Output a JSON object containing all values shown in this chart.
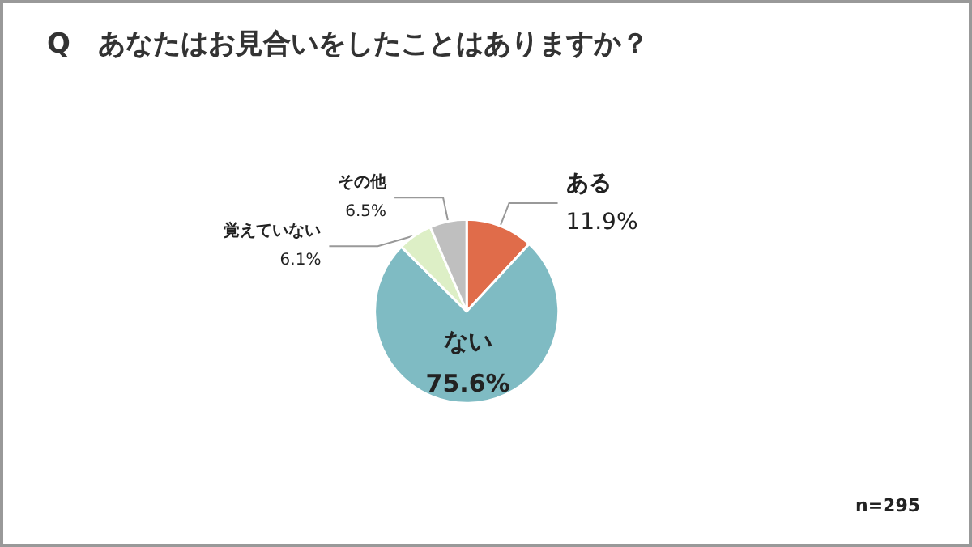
{
  "chart_data": {
    "type": "pie",
    "title": "Q　あなたはお見合いをしたことはありますか？",
    "categories": [
      "ある",
      "ない",
      "覚えていない",
      "その他"
    ],
    "values": [
      11.9,
      75.6,
      6.1,
      6.5
    ],
    "value_labels": [
      "11.9%",
      "75.6%",
      "6.1%",
      "6.5%"
    ],
    "colors": [
      "#e06c4a",
      "#7fbbc3",
      "#ddefc6",
      "#bfbfbf"
    ],
    "annotations": [
      "n=295"
    ],
    "legend": false
  }
}
